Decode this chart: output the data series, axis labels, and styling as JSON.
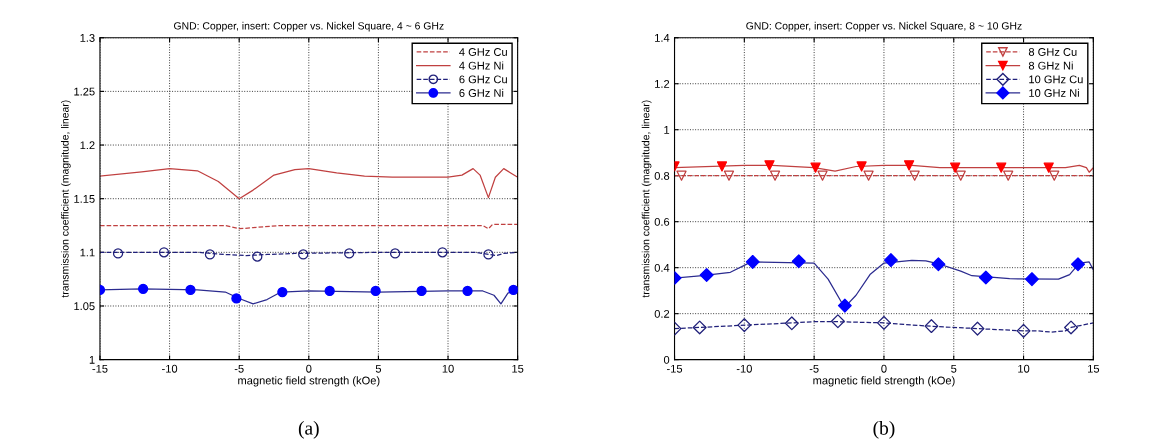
{
  "chart_data": [
    {
      "type": "line",
      "title": "GND: Copper, insert: Copper vs. Nickel Square, 4 ~ 6 GHz",
      "xlabel": "magnetic field strength (kOe)",
      "ylabel": "transmission coefficient (magnitude, linear)",
      "annotations": [
        "(a)"
      ],
      "xlim": [
        -15,
        15
      ],
      "xticks": [
        -15,
        -10,
        -5,
        0,
        5,
        10,
        15
      ],
      "ylim": [
        1,
        1.3
      ],
      "yticks": [
        1,
        1.05,
        1.1,
        1.15,
        1.2,
        1.25,
        1.3
      ],
      "grid": true,
      "legend": "top right",
      "series": [
        {
          "name": "4 GHz Cu",
          "color": "#c04040",
          "line_style": "dashed",
          "x": [
            -15,
            -6,
            -5,
            -4,
            -2,
            10,
            12.5,
            12.9,
            13.2,
            15
          ],
          "values": [
            1.125,
            1.125,
            1.122,
            1.123,
            1.125,
            1.125,
            1.125,
            1.122,
            1.126,
            1.126
          ]
        },
        {
          "name": "4 GHz Ni",
          "color": "#c04040",
          "line_style": "solid",
          "x": [
            -15,
            -12,
            -10,
            -8,
            -6.5,
            -5,
            -4,
            -2.5,
            -1,
            0,
            2,
            4,
            6,
            8,
            10,
            11,
            11.8,
            12.3,
            12.9,
            13.4,
            14,
            14.5,
            15
          ],
          "values": [
            1.171,
            1.175,
            1.178,
            1.176,
            1.166,
            1.15,
            1.158,
            1.172,
            1.177,
            1.178,
            1.174,
            1.171,
            1.17,
            1.17,
            1.17,
            1.172,
            1.178,
            1.172,
            1.151,
            1.17,
            1.178,
            1.174,
            1.17
          ]
        },
        {
          "name": "6 GHz Cu",
          "color": "#20207a",
          "line_style": "dashed",
          "x": [
            -15,
            -8,
            -6,
            -4.5,
            -3,
            -1,
            5,
            12,
            13,
            13.5,
            14,
            15
          ],
          "values": [
            1.1,
            1.1,
            1.098,
            1.097,
            1.098,
            1.099,
            1.1,
            1.1,
            1.098,
            1.097,
            1.099,
            1.1
          ]
        },
        {
          "type": "scatter",
          "color": "#20207a",
          "marker": "circle",
          "x": [
            -13.7,
            -10.4,
            -7.1,
            -3.7,
            -0.4,
            2.9,
            6.2,
            9.6,
            12.9
          ],
          "values": [
            1.099,
            1.1,
            1.098,
            1.096,
            1.098,
            1.099,
            1.099,
            1.1,
            1.098
          ]
        },
        {
          "name": "6 GHz Ni",
          "color": "#2b2b8f",
          "line_style": "solid",
          "x": [
            -15,
            -12,
            -8,
            -6,
            -5,
            -4,
            -3,
            -2,
            0,
            5,
            10,
            12.5,
            13.3,
            13.8,
            14.3,
            15
          ],
          "values": [
            1.065,
            1.066,
            1.065,
            1.063,
            1.057,
            1.052,
            1.056,
            1.063,
            1.064,
            1.063,
            1.064,
            1.064,
            1.06,
            1.052,
            1.062,
            1.065
          ]
        },
        {
          "type": "scatter",
          "color": "#0000ff",
          "marker": "circle",
          "x": [
            -15,
            -11.9,
            -8.5,
            -5.2,
            -1.9,
            1.5,
            4.8,
            8.1,
            11.4,
            14.7
          ],
          "values": [
            1.065,
            1.066,
            1.065,
            1.057,
            1.063,
            1.064,
            1.064,
            1.064,
            1.064,
            1.065
          ]
        }
      ]
    },
    {
      "type": "line",
      "title": "GND: Copper, insert: Copper vs. Nickel Square, 8 ~ 10 GHz",
      "xlabel": "magnetic field strength (kOe)",
      "ylabel": "transmission coefficient (magnitude, linear)",
      "annotations": [
        "(b)"
      ],
      "xlim": [
        -15,
        15
      ],
      "xticks": [
        -15,
        -10,
        -5,
        0,
        5,
        10,
        15
      ],
      "ylim": [
        0,
        1.4
      ],
      "yticks": [
        0,
        0.2,
        0.4,
        0.6,
        0.8,
        1,
        1.2,
        1.4
      ],
      "grid": true,
      "legend": "top right",
      "series": [
        {
          "name": "8 GHz Cu",
          "color": "#c04040",
          "line_style": "dashed",
          "x": [
            -15,
            15
          ],
          "values": [
            0.8,
            0.8
          ]
        },
        {
          "type": "scatter",
          "color": "#c04040",
          "marker": "triangle",
          "x": [
            -14.5,
            -11.1,
            -7.8,
            -4.4,
            -1.1,
            2.2,
            5.5,
            8.9,
            12.2
          ],
          "values": [
            0.8,
            0.8,
            0.8,
            0.8,
            0.8,
            0.8,
            0.8,
            0.8,
            0.8
          ]
        },
        {
          "name": "8 GHz Ni",
          "color": "#c04040",
          "line_style": "solid",
          "x": [
            -15,
            -10,
            -8,
            -5,
            -3.5,
            -2,
            0,
            2,
            4,
            10,
            13,
            14,
            14.5,
            14.7,
            15
          ],
          "values": [
            0.835,
            0.845,
            0.845,
            0.835,
            0.82,
            0.84,
            0.845,
            0.845,
            0.835,
            0.835,
            0.835,
            0.845,
            0.835,
            0.815,
            0.835
          ]
        },
        {
          "type": "scatter",
          "color": "#ff0000",
          "marker": "triangle",
          "x": [
            -15,
            -11.6,
            -8.2,
            -4.9,
            -1.6,
            1.8,
            5.1,
            8.4,
            11.8
          ],
          "values": [
            0.84,
            0.84,
            0.845,
            0.835,
            0.84,
            0.845,
            0.835,
            0.835,
            0.835
          ]
        },
        {
          "name": "10 GHz Cu",
          "color": "#20207a",
          "line_style": "dashed",
          "x": [
            -15,
            -13.2,
            -10,
            -6.5,
            -5,
            -3.3,
            0,
            1,
            3.4,
            6.7,
            10,
            11,
            12,
            13,
            13.4,
            15
          ],
          "values": [
            0.135,
            0.14,
            0.15,
            0.16,
            0.165,
            0.165,
            0.16,
            0.155,
            0.145,
            0.135,
            0.125,
            0.125,
            0.12,
            0.125,
            0.14,
            0.16
          ]
        },
        {
          "type": "scatter",
          "color": "#20207a",
          "marker": "diamond",
          "x": [
            -15,
            -13.2,
            -10,
            -6.6,
            -3.3,
            0,
            3.4,
            6.7,
            10,
            13.4
          ],
          "values": [
            0.135,
            0.14,
            0.15,
            0.158,
            0.167,
            0.16,
            0.146,
            0.135,
            0.125,
            0.14
          ]
        },
        {
          "name": "10 GHz Ni",
          "color": "#2b2b8f",
          "line_style": "solid",
          "x": [
            -15,
            -13,
            -11,
            -9.5,
            -5,
            -4,
            -3,
            -2.7,
            -2,
            -1,
            0,
            2,
            3,
            4,
            5.5,
            6.3,
            9,
            12.5,
            13.3,
            14,
            14.7,
            15
          ],
          "values": [
            0.355,
            0.365,
            0.38,
            0.425,
            0.42,
            0.35,
            0.245,
            0.235,
            0.28,
            0.37,
            0.42,
            0.432,
            0.43,
            0.415,
            0.385,
            0.365,
            0.352,
            0.35,
            0.37,
            0.42,
            0.425,
            0.39
          ]
        },
        {
          "type": "scatter",
          "color": "#0000ff",
          "marker": "diamond",
          "x": [
            -15,
            -12.7,
            -9.4,
            -6.1,
            -2.8,
            0.5,
            3.9,
            7.3,
            10.6,
            13.9
          ],
          "values": [
            0.355,
            0.368,
            0.425,
            0.428,
            0.235,
            0.433,
            0.415,
            0.357,
            0.35,
            0.415
          ]
        }
      ]
    }
  ]
}
